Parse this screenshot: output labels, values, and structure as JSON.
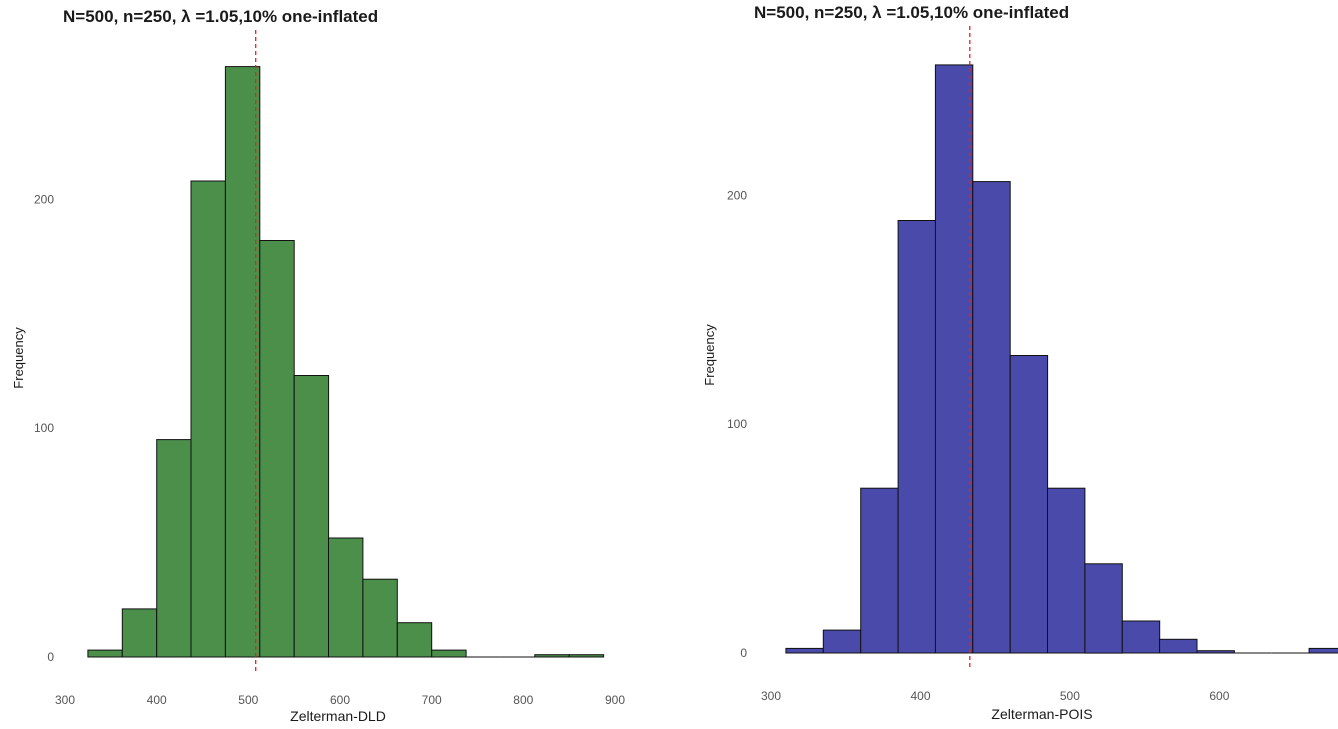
{
  "chart_data": [
    {
      "type": "bar",
      "title": "N=500, n=250, λ =1.05,10% one-inflated",
      "xlabel": "Zelterman-DLD",
      "ylabel": "Frequency",
      "xlim": [
        300,
        900
      ],
      "ylim": [
        0,
        260
      ],
      "x_ticks": [
        "300",
        "400",
        "500",
        "600",
        "700",
        "800",
        "900"
      ],
      "y_ticks": [
        "0",
        "100",
        "200"
      ],
      "bin_width": 37.5,
      "bins": [
        {
          "x0": 325,
          "x1": 362.5,
          "count": 3
        },
        {
          "x0": 362.5,
          "x1": 400,
          "count": 21
        },
        {
          "x0": 400,
          "x1": 437.5,
          "count": 95
        },
        {
          "x0": 437.5,
          "x1": 475,
          "count": 208
        },
        {
          "x0": 475,
          "x1": 512.5,
          "count": 258
        },
        {
          "x0": 512.5,
          "x1": 550,
          "count": 182
        },
        {
          "x0": 550,
          "x1": 587.5,
          "count": 123
        },
        {
          "x0": 587.5,
          "x1": 625,
          "count": 52
        },
        {
          "x0": 625,
          "x1": 662.5,
          "count": 34
        },
        {
          "x0": 662.5,
          "x1": 700,
          "count": 15
        },
        {
          "x0": 700,
          "x1": 737.5,
          "count": 3
        },
        {
          "x0": 737.5,
          "x1": 775,
          "count": 0
        },
        {
          "x0": 775,
          "x1": 812.5,
          "count": 0
        },
        {
          "x0": 812.5,
          "x1": 850,
          "count": 1
        },
        {
          "x0": 850,
          "x1": 887.5,
          "count": 1
        }
      ],
      "reference_line": 508,
      "colors": {
        "fill": "#4b8f4b",
        "stroke": "#111111",
        "reference": "#e8211c"
      },
      "grid": false
    },
    {
      "type": "bar",
      "title": "N=500, n=250, λ =1.05,10% one-inflated",
      "xlabel": "Zelterman-POIS",
      "ylabel": "Frequency",
      "xlim": [
        300,
        680
      ],
      "ylim": [
        0,
        260
      ],
      "x_ticks": [
        "300",
        "400",
        "500",
        "600"
      ],
      "y_ticks": [
        "0",
        "100",
        "200"
      ],
      "bin_width": 25,
      "bins": [
        {
          "x0": 310,
          "x1": 335,
          "count": 2
        },
        {
          "x0": 335,
          "x1": 360,
          "count": 10
        },
        {
          "x0": 360,
          "x1": 385,
          "count": 72
        },
        {
          "x0": 385,
          "x1": 410,
          "count": 189
        },
        {
          "x0": 410,
          "x1": 435,
          "count": 257
        },
        {
          "x0": 435,
          "x1": 460,
          "count": 206
        },
        {
          "x0": 460,
          "x1": 485,
          "count": 130
        },
        {
          "x0": 485,
          "x1": 510,
          "count": 72
        },
        {
          "x0": 510,
          "x1": 535,
          "count": 39
        },
        {
          "x0": 535,
          "x1": 560,
          "count": 14
        },
        {
          "x0": 560,
          "x1": 585,
          "count": 6
        },
        {
          "x0": 585,
          "x1": 610,
          "count": 1
        },
        {
          "x0": 610,
          "x1": 635,
          "count": 0
        },
        {
          "x0": 635,
          "x1": 660,
          "count": 0
        },
        {
          "x0": 660,
          "x1": 685,
          "count": 2
        }
      ],
      "reference_line": 433,
      "colors": {
        "fill": "#4a4aaa",
        "stroke": "#111111",
        "reference": "#e8211c"
      },
      "grid": false
    }
  ]
}
